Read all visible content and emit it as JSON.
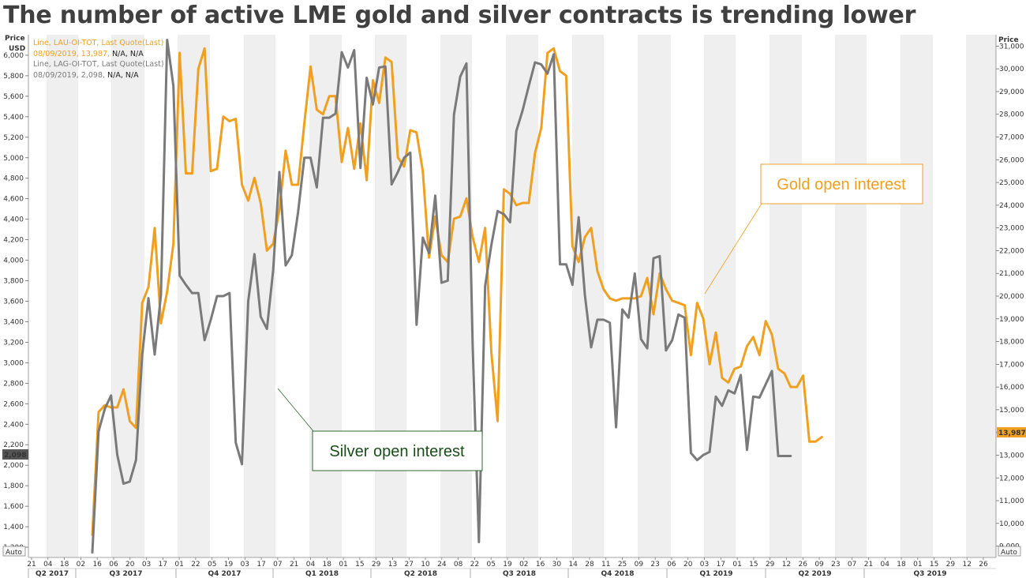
{
  "title": "The number of active LME gold and silver contracts is trending lower",
  "legend": {
    "gold_line1": "Line, LAU-OI-TOT, Last Quote(Last)",
    "gold_line2_prefix": "08/09/2019, 13,987, ",
    "gold_line2_suffix": "N/A, N/A",
    "silver_line1": "Line, LAG-OI-TOT, Last Quote(Last)",
    "silver_line2_prefix": "08/09/2019, 2,098, ",
    "silver_line2_suffix": "N/A, N/A"
  },
  "annotations": {
    "gold": "Gold open interest",
    "silver": "Silver open interest"
  },
  "badges": {
    "auto_left": "Auto",
    "auto_right": "Auto",
    "gold_last": "13,987",
    "silver_last": "2,098"
  },
  "colors": {
    "gold": "#f0a020",
    "silver": "#7a7a7a",
    "gold_callout_border": "#e8a030",
    "silver_callout_border": "#2e6b2e",
    "silver_callout_text": "#1a4d1a",
    "band": "#efefef"
  },
  "chart_data": {
    "type": "line",
    "x_unit": "weekly observations (index 0 = 16 Jun 2017)",
    "left_axis": {
      "label_line1": "Price",
      "label_line2": "USD",
      "range": [
        1100,
        6200
      ],
      "ticks": [
        "1,200",
        "1,400",
        "1,600",
        "1,800",
        "2,000",
        "2,200",
        "2,400",
        "2,600",
        "2,800",
        "3,000",
        "3,200",
        "3,400",
        "3,600",
        "3,800",
        "4,000",
        "4,200",
        "4,400",
        "4,600",
        "4,800",
        "5,000",
        "5,200",
        "5,400",
        "5,600",
        "5,800",
        "6,000"
      ],
      "tick_values": [
        1200,
        1400,
        1600,
        1800,
        2000,
        2200,
        2400,
        2600,
        2800,
        3000,
        3200,
        3400,
        3600,
        3800,
        4000,
        4200,
        4400,
        4600,
        4800,
        5000,
        5200,
        5400,
        5600,
        5800,
        6000
      ]
    },
    "right_axis": {
      "label": "Price",
      "range": [
        8500,
        31500
      ],
      "ticks": [
        "9,000",
        "10,000",
        "11,000",
        "12,000",
        "13,000",
        "14,000",
        "15,000",
        "16,000",
        "17,000",
        "18,000",
        "19,000",
        "20,000",
        "21,000",
        "22,000",
        "23,000",
        "24,000",
        "25,000",
        "26,000",
        "27,000",
        "28,000",
        "29,000",
        "30,000",
        "31,000"
      ],
      "tick_values": [
        9000,
        10000,
        11000,
        12000,
        13000,
        14000,
        15000,
        16000,
        17000,
        18000,
        19000,
        20000,
        21000,
        22000,
        23000,
        24000,
        25000,
        26000,
        27000,
        28000,
        29000,
        30000,
        31000
      ]
    },
    "x_axis": {
      "days": [
        "21",
        "04",
        "18",
        "02",
        "16",
        "06",
        "20",
        "03",
        "17",
        "01",
        "22",
        "05",
        "19",
        "03",
        "17",
        "07",
        "21",
        "04",
        "18",
        "01",
        "15",
        "29",
        "13",
        "27",
        "10",
        "24",
        "08",
        "22",
        "05",
        "19",
        "02",
        "16",
        "30",
        "14",
        "28",
        "11",
        "25",
        "09",
        "23",
        "06",
        "20",
        "03",
        "17",
        "01",
        "15",
        "29",
        "12",
        "26",
        "09",
        "23",
        "07",
        "21",
        "04",
        "18",
        "01",
        "15",
        "29",
        "12",
        "26"
      ],
      "quarters": [
        "Q2 2017",
        "Q3 2017",
        "Q4 2017",
        "Q1 2018",
        "Q2 2018",
        "Q3 2018",
        "Q4 2018",
        "Q1 2019",
        "Q2 2019",
        "Q3 2019"
      ]
    },
    "series": [
      {
        "name": "LAU-OI-TOT",
        "axis": "right",
        "values": [
          9500,
          14900,
          15200,
          15100,
          15100,
          15900,
          14500,
          14200,
          19700,
          20400,
          23000,
          18800,
          20200,
          22300,
          30700,
          25400,
          25400,
          30000,
          30900,
          25500,
          25600,
          27900,
          27700,
          27800,
          24900,
          24200,
          25200,
          24100,
          22000,
          22300,
          23800,
          26400,
          24900,
          24900,
          27600,
          30100,
          28200,
          28000,
          28800,
          28800,
          25900,
          27400,
          25600,
          27600,
          25100,
          29500,
          28500,
          30500,
          30300,
          26100,
          25700,
          27300,
          27200,
          25500,
          21700,
          23500,
          21800,
          21500,
          23400,
          23500,
          24300,
          22600,
          21500,
          23000,
          17500,
          14500,
          24700,
          24500,
          24000,
          24100,
          24100,
          26300,
          27400,
          30700,
          30900,
          29900,
          29700,
          22200,
          21500,
          22600,
          23000,
          21100,
          20300,
          19900,
          19800,
          19900,
          19900,
          19900,
          20000,
          20800,
          19200,
          21000,
          20300,
          19800,
          19700,
          19600,
          17400,
          19700,
          19000,
          17000,
          18400,
          16400,
          16200,
          16800,
          16900,
          17800,
          18200,
          17400,
          18900,
          18300,
          16800,
          16600,
          16000,
          16000,
          16500,
          13600,
          13600,
          13800
        ],
        "last": 13987
      },
      {
        "name": "LAG-OI-TOT",
        "axis": "left",
        "values": [
          1150,
          2330,
          2550,
          2680,
          2100,
          1820,
          1840,
          2050,
          3080,
          3630,
          3080,
          3660,
          6150,
          5700,
          3850,
          3760,
          3680,
          3680,
          3220,
          3420,
          3650,
          3650,
          3680,
          2220,
          2010,
          3600,
          4060,
          3450,
          3330,
          3900,
          4860,
          3950,
          4050,
          4470,
          5000,
          5000,
          4710,
          5390,
          5390,
          5430,
          6030,
          5880,
          6050,
          4900,
          5780,
          5520,
          5880,
          5890,
          4740,
          4860,
          5000,
          5050,
          3370,
          4220,
          4070,
          4630,
          3780,
          3800,
          5420,
          5790,
          5920,
          3170,
          1250,
          3750,
          4150,
          4480,
          4450,
          4370,
          5260,
          5460,
          5700,
          5930,
          5910,
          5820,
          6010,
          3960,
          3960,
          3760,
          4420,
          3660,
          3150,
          3420,
          3420,
          3390,
          2370,
          3520,
          3440,
          3870,
          3230,
          3140,
          4020,
          4040,
          3120,
          3220,
          3470,
          3440,
          2120,
          2050,
          2100,
          2130,
          2670,
          2580,
          2730,
          2700,
          2880,
          2150,
          2670,
          2660,
          2790,
          2920,
          2090,
          2090,
          2090
        ],
        "last": 2098
      }
    ]
  }
}
